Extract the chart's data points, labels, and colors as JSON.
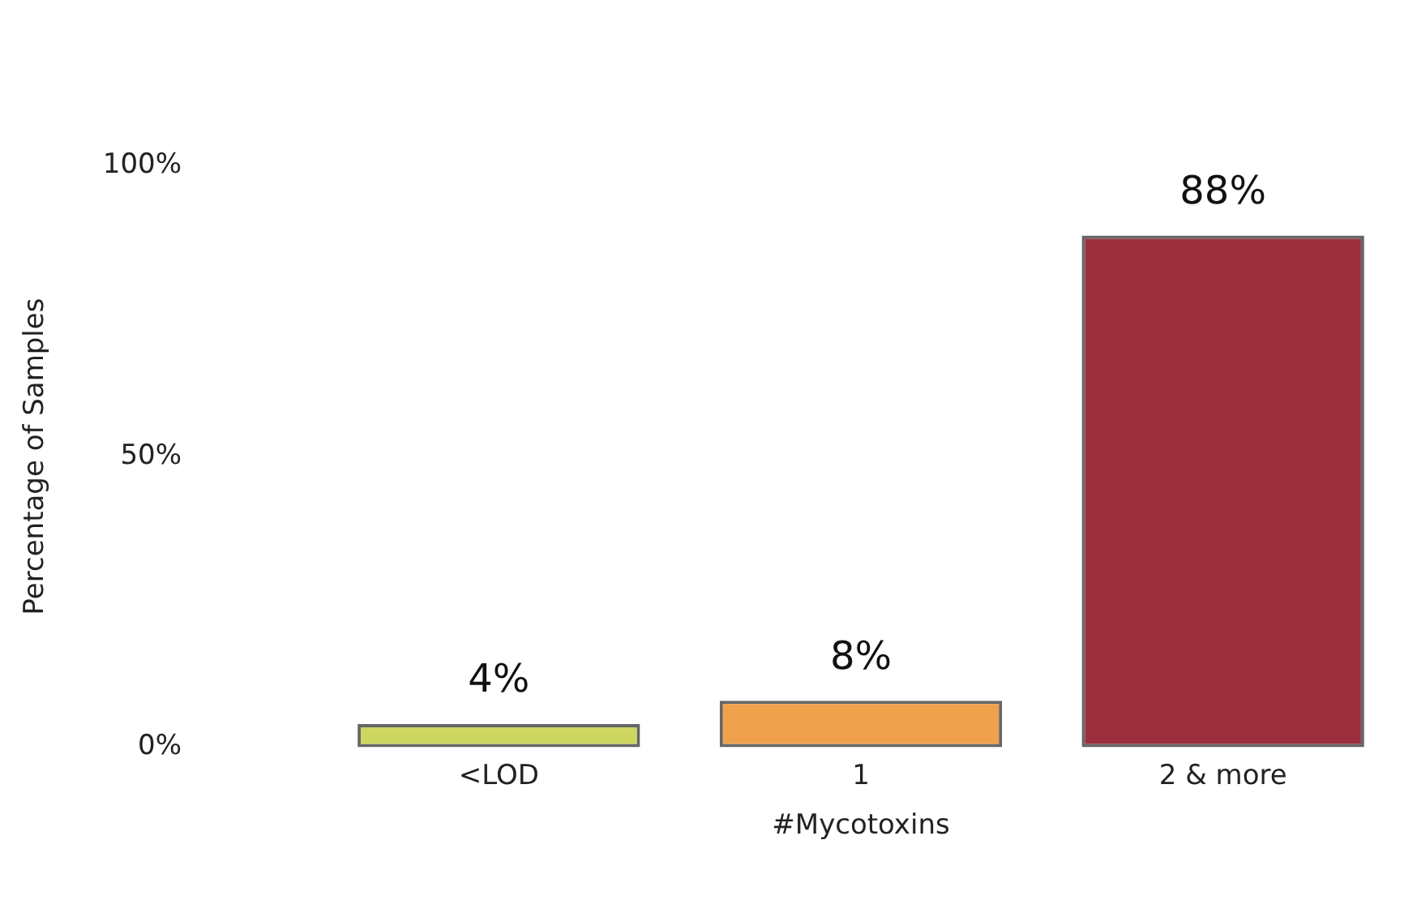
{
  "chart_data": {
    "type": "bar",
    "xlabel": "#Mycotoxins",
    "ylabel": "Percentage of Samples",
    "categories": [
      "<LOD",
      "1",
      "2 & more"
    ],
    "values": [
      4,
      8,
      88
    ],
    "colors": [
      "#cdd65f",
      "#f0a14b",
      "#9b2f3d"
    ],
    "value_labels": [
      "4%",
      "8%",
      "88%"
    ],
    "ylim": [
      0,
      100
    ],
    "yticks": [
      {
        "value": 0,
        "label": "0%"
      },
      {
        "value": 50,
        "label": "50%"
      },
      {
        "value": 100,
        "label": "100%"
      }
    ],
    "grid": false,
    "legend": false
  }
}
